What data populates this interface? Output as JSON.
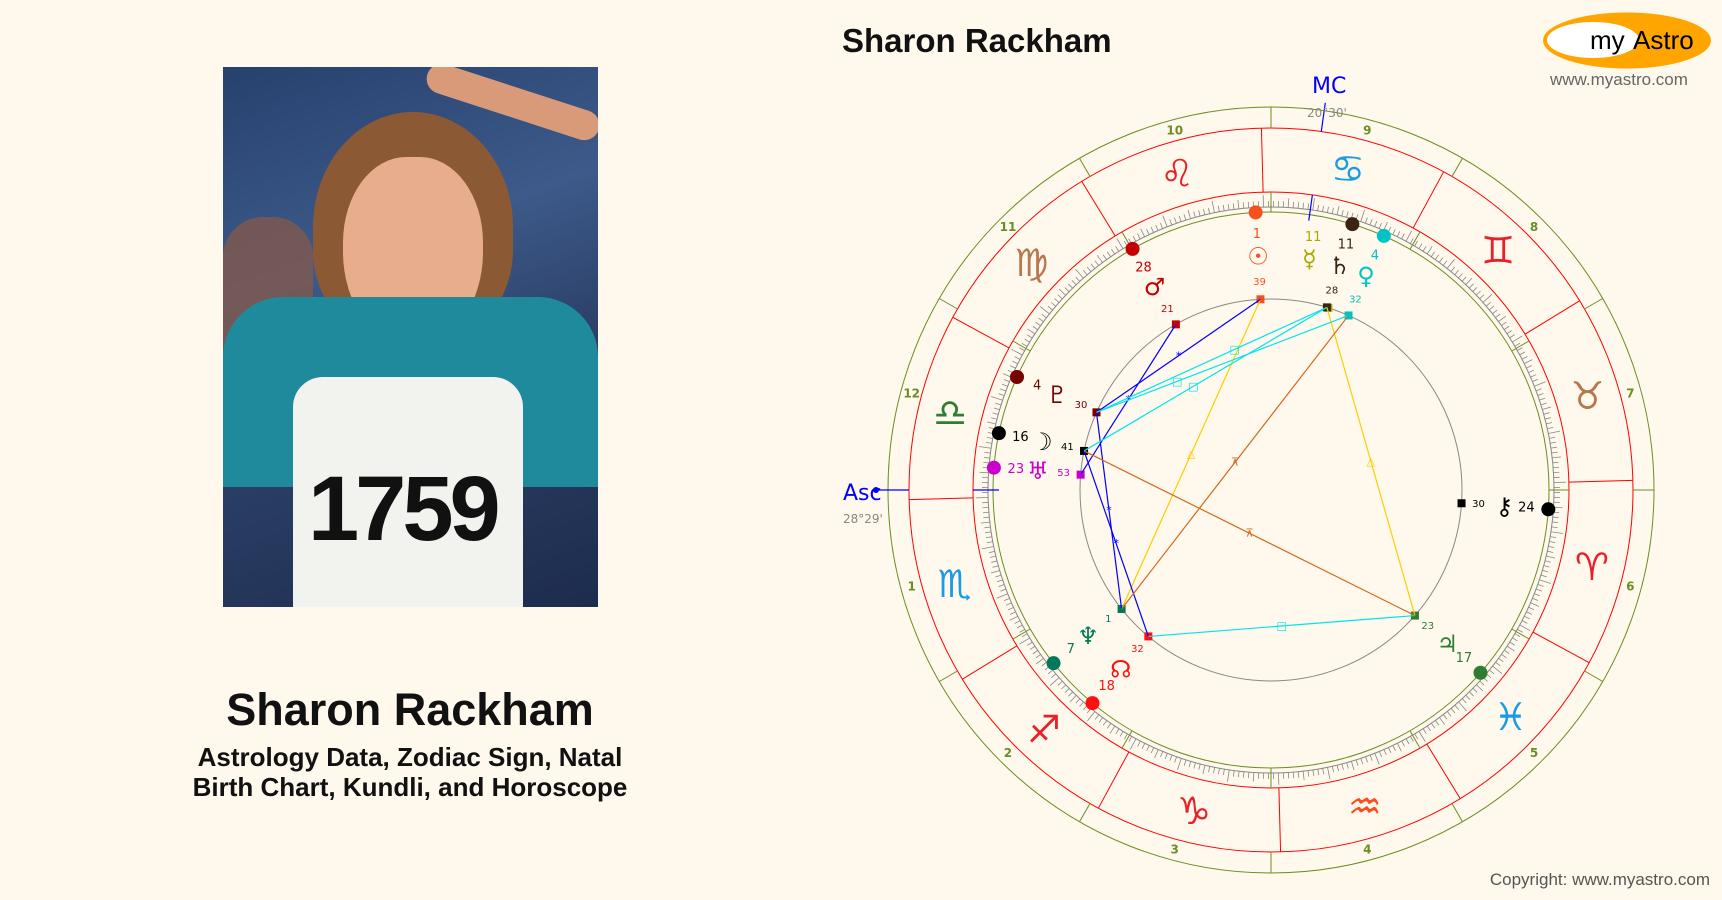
{
  "header": {
    "title": "Sharon Rackham"
  },
  "logo": {
    "text_my": "my",
    "text_astro": "Astro",
    "url": "www.myastro.com",
    "color": "#ffa500"
  },
  "left": {
    "name": "Sharon Rackham",
    "subtitle_line1": "Astrology Data, Zodiac Sign, Natal",
    "subtitle_line2": "Birth Chart, Kundli, and Horoscope",
    "photo_bib": "1759"
  },
  "footer": {
    "copyright": "Copyright: www.myastro.com"
  },
  "chart": {
    "asc": {
      "label": "Asc",
      "sign": "Libra",
      "deg": 28,
      "min": 29,
      "text": "28°29'"
    },
    "mc": {
      "label": "MC",
      "sign": "Cancer",
      "deg": 20,
      "min": 30,
      "text": "20°30'"
    },
    "house_system": "equal",
    "houses": [
      "1",
      "2",
      "3",
      "4",
      "5",
      "6",
      "7",
      "8",
      "9",
      "10",
      "11",
      "12"
    ],
    "signs": [
      {
        "name": "Aries",
        "glyph": "♈",
        "color": "#e8202a"
      },
      {
        "name": "Taurus",
        "glyph": "♉",
        "color": "#b7784f"
      },
      {
        "name": "Gemini",
        "glyph": "♊",
        "color": "#e8202a"
      },
      {
        "name": "Cancer",
        "glyph": "♋",
        "color": "#1b9be6"
      },
      {
        "name": "Leo",
        "glyph": "♌",
        "color": "#e8202a"
      },
      {
        "name": "Virgo",
        "glyph": "♍",
        "color": "#b7784f"
      },
      {
        "name": "Libra",
        "glyph": "♎",
        "color": "#2e7d32"
      },
      {
        "name": "Scorpio",
        "glyph": "♏",
        "color": "#1b9be6"
      },
      {
        "name": "Sagittarius",
        "glyph": "♐",
        "color": "#e8202a"
      },
      {
        "name": "Capricorn",
        "glyph": "♑",
        "color": "#e8202a"
      },
      {
        "name": "Aquarius",
        "glyph": "♒",
        "color": "#ff4a1c"
      },
      {
        "name": "Pisces",
        "glyph": "♓",
        "color": "#1b9be6"
      }
    ],
    "planets": [
      {
        "name": "Sun",
        "glyph": "☉",
        "sign": "Leo",
        "deg": "1",
        "min": "39",
        "color": "#f4511e"
      },
      {
        "name": "Mars",
        "glyph": "♂",
        "sign": "Leo",
        "deg": "28",
        "min": "21",
        "color": "#c40000"
      },
      {
        "name": "Mercury",
        "glyph": "☿",
        "sign": "Cancer",
        "deg": "11",
        "min": "",
        "color": "#a8a800"
      },
      {
        "name": "Saturn",
        "glyph": "♄",
        "sign": "Cancer",
        "deg": "11",
        "min": "28",
        "color": "#3a2410"
      },
      {
        "name": "Venus",
        "glyph": "♀",
        "sign": "Cancer",
        "deg": "4",
        "min": "32",
        "color": "#00c4c4"
      },
      {
        "name": "Pluto",
        "glyph": "♇",
        "sign": "Libra",
        "deg": "4",
        "min": "30",
        "color": "#740000"
      },
      {
        "name": "Moon",
        "glyph": "☽",
        "sign": "Libra",
        "deg": "16",
        "min": "41",
        "color": "#000000"
      },
      {
        "name": "Uranus",
        "glyph": "♅",
        "sign": "Libra",
        "deg": "23",
        "min": "53",
        "color": "#cc00cc"
      },
      {
        "name": "Chiron",
        "glyph": "⚷",
        "sign": "Aries",
        "deg": "24",
        "min": "30",
        "color": "#000000"
      },
      {
        "name": "Jupiter",
        "glyph": "♃",
        "sign": "Pisces",
        "deg": "17",
        "min": "23",
        "color": "#2e7d32"
      },
      {
        "name": "Neptune",
        "glyph": "♆",
        "sign": "Sagittarius",
        "deg": "7",
        "min": "1",
        "color": "#00795a"
      },
      {
        "name": "North Node",
        "glyph": "☊",
        "sign": "Sagittarius",
        "deg": "18",
        "min": "32",
        "color": "#ff1010"
      }
    ],
    "aspects": [
      {
        "a": "Sun",
        "b": "Neptune",
        "type": "trine",
        "color": "#ffcc00",
        "glyph": "△"
      },
      {
        "a": "Saturn",
        "b": "Jupiter",
        "type": "trine",
        "color": "#ffcc00",
        "glyph": "△"
      },
      {
        "a": "Sun",
        "b": "Pluto",
        "type": "sextile",
        "color": "#0000ff",
        "glyph": "*"
      },
      {
        "a": "Mars",
        "b": "Uranus",
        "type": "sextile",
        "color": "#0000ff",
        "glyph": "*"
      },
      {
        "a": "Pluto",
        "b": "Neptune",
        "type": "sextile",
        "color": "#0000ff",
        "glyph": "*"
      },
      {
        "a": "Moon",
        "b": "North Node",
        "type": "sextile",
        "color": "#0000ff",
        "glyph": "*"
      },
      {
        "a": "Saturn",
        "b": "Pluto",
        "type": "square",
        "color": "#00e5ee",
        "glyph": "□"
      },
      {
        "a": "Saturn",
        "b": "Moon",
        "type": "square",
        "color": "#00e5ee",
        "glyph": "□"
      },
      {
        "a": "Venus",
        "b": "Pluto",
        "type": "square",
        "color": "#00e5ee",
        "glyph": "□"
      },
      {
        "a": "Jupiter",
        "b": "North Node",
        "type": "square",
        "color": "#00e5ee",
        "glyph": "□"
      },
      {
        "a": "Venus",
        "b": "Neptune",
        "type": "quincunx",
        "color": "#d2691e",
        "glyph": "⊼"
      },
      {
        "a": "Moon",
        "b": "Jupiter",
        "type": "quincunx",
        "color": "#d2691e",
        "glyph": "⊼"
      }
    ]
  }
}
